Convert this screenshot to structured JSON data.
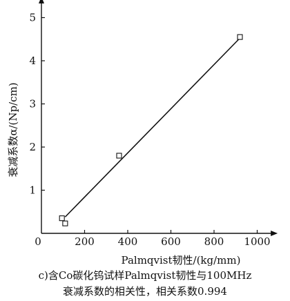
{
  "chart_data": {
    "type": "scatter",
    "xlabel": "Palmqvist韧性/(kg/mm)",
    "ylabel": "衰减系数α/(Np/cm)",
    "x_ticks": [
      0,
      200,
      400,
      600,
      800,
      1000
    ],
    "y_ticks": [
      0,
      1,
      2,
      3,
      4,
      5
    ],
    "xlim": [
      0,
      1050
    ],
    "ylim": [
      0,
      5.2
    ],
    "grid": false,
    "points": [
      {
        "x": 95,
        "y": 0.35
      },
      {
        "x": 110,
        "y": 0.23
      },
      {
        "x": 360,
        "y": 1.8
      },
      {
        "x": 920,
        "y": 4.55
      }
    ],
    "fit_line": [
      {
        "x": 110,
        "y": 0.38
      },
      {
        "x": 915,
        "y": 4.5
      }
    ]
  },
  "caption": {
    "line1": "c)含Co碳化钨试样Palmqvist韧性与100MHz",
    "line2": "衰减系数的相关性，相关系数0.994"
  }
}
